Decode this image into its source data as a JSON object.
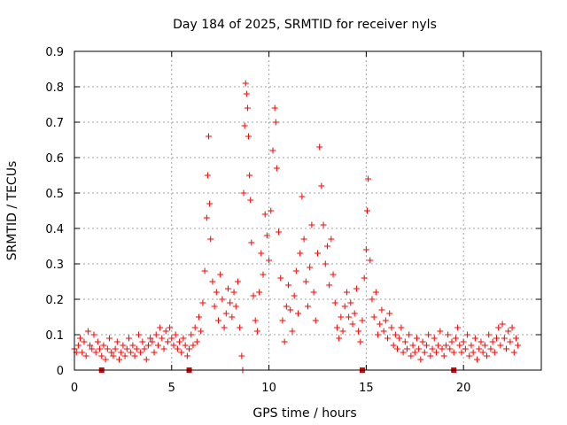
{
  "chart_data": {
    "type": "scatter",
    "title": "Day 184 of 2025, SRMTID for receiver nyls",
    "xlabel": "GPS time / hours",
    "ylabel": "SRMTID / TECUs",
    "xlim": [
      0,
      24
    ],
    "ylim": [
      0,
      0.9
    ],
    "xticks": [
      0,
      5,
      10,
      15,
      20
    ],
    "yticks": [
      0,
      0.1,
      0.2,
      0.3,
      0.4,
      0.5,
      0.6,
      0.7,
      0.8,
      0.9
    ],
    "xtick_labels": [
      "0",
      "5",
      "10",
      "15",
      "20"
    ],
    "ytick_labels": [
      "0",
      "0.1",
      "0.2",
      "0.3",
      "0.4",
      "0.5",
      "0.6",
      "0.7",
      "0.8",
      "0.9"
    ],
    "grid": true,
    "marker": "+",
    "color": "#ff0000",
    "gap_markers_x": [
      1.4,
      5.9,
      14.8,
      19.5
    ],
    "series": [
      {
        "name": "SRMTID",
        "points": [
          [
            0.0,
            0.06
          ],
          [
            0.1,
            0.05
          ],
          [
            0.2,
            0.07
          ],
          [
            0.3,
            0.09
          ],
          [
            0.4,
            0.05
          ],
          [
            0.5,
            0.08
          ],
          [
            0.6,
            0.04
          ],
          [
            0.7,
            0.11
          ],
          [
            0.8,
            0.07
          ],
          [
            0.9,
            0.06
          ],
          [
            1.0,
            0.1
          ],
          [
            1.1,
            0.05
          ],
          [
            1.2,
            0.08
          ],
          [
            1.3,
            0.06
          ],
          [
            1.4,
            0.04
          ],
          [
            1.5,
            0.07
          ],
          [
            1.6,
            0.03
          ],
          [
            1.7,
            0.06
          ],
          [
            1.8,
            0.09
          ],
          [
            1.9,
            0.05
          ],
          [
            2.0,
            0.04
          ],
          [
            2.1,
            0.06
          ],
          [
            2.2,
            0.08
          ],
          [
            2.3,
            0.03
          ],
          [
            2.4,
            0.05
          ],
          [
            2.5,
            0.07
          ],
          [
            2.6,
            0.04
          ],
          [
            2.7,
            0.06
          ],
          [
            2.8,
            0.09
          ],
          [
            2.9,
            0.05
          ],
          [
            3.0,
            0.07
          ],
          [
            3.1,
            0.04
          ],
          [
            3.2,
            0.06
          ],
          [
            3.3,
            0.1
          ],
          [
            3.4,
            0.05
          ],
          [
            3.5,
            0.08
          ],
          [
            3.6,
            0.06
          ],
          [
            3.7,
            0.03
          ],
          [
            3.8,
            0.07
          ],
          [
            3.9,
            0.09
          ],
          [
            4.0,
            0.08
          ],
          [
            4.1,
            0.05
          ],
          [
            4.2,
            0.1
          ],
          [
            4.3,
            0.07
          ],
          [
            4.4,
            0.12
          ],
          [
            4.5,
            0.09
          ],
          [
            4.6,
            0.06
          ],
          [
            4.7,
            0.11
          ],
          [
            4.8,
            0.08
          ],
          [
            4.9,
            0.12
          ],
          [
            5.0,
            0.09
          ],
          [
            5.1,
            0.07
          ],
          [
            5.2,
            0.1
          ],
          [
            5.3,
            0.06
          ],
          [
            5.4,
            0.08
          ],
          [
            5.5,
            0.05
          ],
          [
            5.6,
            0.09
          ],
          [
            5.7,
            0.07
          ],
          [
            5.8,
            0.04
          ],
          [
            5.9,
            0.06
          ],
          [
            6.0,
            0.1
          ],
          [
            6.1,
            0.07
          ],
          [
            6.2,
            0.12
          ],
          [
            6.3,
            0.08
          ],
          [
            6.4,
            0.15
          ],
          [
            6.5,
            0.11
          ],
          [
            6.6,
            0.19
          ],
          [
            6.7,
            0.28
          ],
          [
            6.8,
            0.43
          ],
          [
            6.85,
            0.55
          ],
          [
            6.9,
            0.66
          ],
          [
            6.95,
            0.47
          ],
          [
            7.0,
            0.37
          ],
          [
            7.1,
            0.25
          ],
          [
            7.2,
            0.18
          ],
          [
            7.3,
            0.22
          ],
          [
            7.4,
            0.14
          ],
          [
            7.5,
            0.27
          ],
          [
            7.6,
            0.2
          ],
          [
            7.7,
            0.12
          ],
          [
            7.8,
            0.16
          ],
          [
            7.9,
            0.23
          ],
          [
            8.0,
            0.19
          ],
          [
            8.1,
            0.15
          ],
          [
            8.2,
            0.22
          ],
          [
            8.3,
            0.18
          ],
          [
            8.4,
            0.25
          ],
          [
            8.5,
            0.12
          ],
          [
            8.6,
            0.04
          ],
          [
            8.65,
            0.0
          ],
          [
            8.7,
            0.5
          ],
          [
            8.75,
            0.69
          ],
          [
            8.8,
            0.81
          ],
          [
            8.85,
            0.78
          ],
          [
            8.9,
            0.74
          ],
          [
            8.95,
            0.66
          ],
          [
            9.0,
            0.55
          ],
          [
            9.05,
            0.48
          ],
          [
            9.1,
            0.36
          ],
          [
            9.2,
            0.21
          ],
          [
            9.3,
            0.14
          ],
          [
            9.4,
            0.11
          ],
          [
            9.5,
            0.22
          ],
          [
            9.6,
            0.33
          ],
          [
            9.7,
            0.27
          ],
          [
            9.8,
            0.44
          ],
          [
            9.9,
            0.38
          ],
          [
            10.0,
            0.31
          ],
          [
            10.1,
            0.45
          ],
          [
            10.2,
            0.62
          ],
          [
            10.3,
            0.74
          ],
          [
            10.35,
            0.7
          ],
          [
            10.4,
            0.57
          ],
          [
            10.5,
            0.39
          ],
          [
            10.6,
            0.26
          ],
          [
            10.7,
            0.14
          ],
          [
            10.8,
            0.08
          ],
          [
            10.9,
            0.18
          ],
          [
            11.0,
            0.24
          ],
          [
            11.1,
            0.17
          ],
          [
            11.2,
            0.11
          ],
          [
            11.3,
            0.21
          ],
          [
            11.4,
            0.28
          ],
          [
            11.5,
            0.16
          ],
          [
            11.6,
            0.33
          ],
          [
            11.7,
            0.49
          ],
          [
            11.8,
            0.37
          ],
          [
            11.9,
            0.25
          ],
          [
            12.0,
            0.18
          ],
          [
            12.1,
            0.29
          ],
          [
            12.2,
            0.41
          ],
          [
            12.3,
            0.22
          ],
          [
            12.4,
            0.14
          ],
          [
            12.5,
            0.33
          ],
          [
            12.6,
            0.63
          ],
          [
            12.7,
            0.52
          ],
          [
            12.8,
            0.41
          ],
          [
            12.9,
            0.3
          ],
          [
            13.0,
            0.35
          ],
          [
            13.1,
            0.24
          ],
          [
            13.2,
            0.37
          ],
          [
            13.3,
            0.27
          ],
          [
            13.4,
            0.19
          ],
          [
            13.5,
            0.12
          ],
          [
            13.6,
            0.09
          ],
          [
            13.7,
            0.15
          ],
          [
            13.8,
            0.11
          ],
          [
            13.9,
            0.18
          ],
          [
            14.0,
            0.22
          ],
          [
            14.1,
            0.15
          ],
          [
            14.2,
            0.19
          ],
          [
            14.3,
            0.13
          ],
          [
            14.4,
            0.16
          ],
          [
            14.5,
            0.23
          ],
          [
            14.6,
            0.11
          ],
          [
            14.7,
            0.08
          ],
          [
            14.8,
            0.14
          ],
          [
            14.9,
            0.26
          ],
          [
            15.0,
            0.34
          ],
          [
            15.05,
            0.45
          ],
          [
            15.1,
            0.54
          ],
          [
            15.2,
            0.31
          ],
          [
            15.3,
            0.2
          ],
          [
            15.4,
            0.15
          ],
          [
            15.5,
            0.22
          ],
          [
            15.6,
            0.1
          ],
          [
            15.7,
            0.13
          ],
          [
            15.8,
            0.17
          ],
          [
            15.9,
            0.11
          ],
          [
            16.0,
            0.14
          ],
          [
            16.1,
            0.09
          ],
          [
            16.2,
            0.16
          ],
          [
            16.3,
            0.12
          ],
          [
            16.4,
            0.07
          ],
          [
            16.5,
            0.1
          ],
          [
            16.6,
            0.06
          ],
          [
            16.7,
            0.09
          ],
          [
            16.8,
            0.12
          ],
          [
            16.9,
            0.05
          ],
          [
            17.0,
            0.08
          ],
          [
            17.1,
            0.06
          ],
          [
            17.2,
            0.1
          ],
          [
            17.3,
            0.04
          ],
          [
            17.4,
            0.07
          ],
          [
            17.5,
            0.05
          ],
          [
            17.6,
            0.09
          ],
          [
            17.7,
            0.06
          ],
          [
            17.8,
            0.03
          ],
          [
            17.9,
            0.08
          ],
          [
            18.0,
            0.05
          ],
          [
            18.1,
            0.07
          ],
          [
            18.2,
            0.1
          ],
          [
            18.3,
            0.04
          ],
          [
            18.4,
            0.06
          ],
          [
            18.5,
            0.09
          ],
          [
            18.6,
            0.05
          ],
          [
            18.7,
            0.07
          ],
          [
            18.8,
            0.11
          ],
          [
            18.9,
            0.06
          ],
          [
            19.0,
            0.04
          ],
          [
            19.1,
            0.07
          ],
          [
            19.2,
            0.1
          ],
          [
            19.3,
            0.06
          ],
          [
            19.4,
            0.08
          ],
          [
            19.5,
            0.05
          ],
          [
            19.6,
            0.09
          ],
          [
            19.7,
            0.12
          ],
          [
            19.8,
            0.07
          ],
          [
            19.9,
            0.05
          ],
          [
            20.0,
            0.08
          ],
          [
            20.1,
            0.06
          ],
          [
            20.2,
            0.1
          ],
          [
            20.3,
            0.04
          ],
          [
            20.4,
            0.07
          ],
          [
            20.5,
            0.05
          ],
          [
            20.6,
            0.09
          ],
          [
            20.7,
            0.03
          ],
          [
            20.8,
            0.06
          ],
          [
            20.9,
            0.08
          ],
          [
            21.0,
            0.05
          ],
          [
            21.1,
            0.07
          ],
          [
            21.2,
            0.04
          ],
          [
            21.3,
            0.1
          ],
          [
            21.4,
            0.06
          ],
          [
            21.5,
            0.08
          ],
          [
            21.6,
            0.05
          ],
          [
            21.7,
            0.09
          ],
          [
            21.8,
            0.12
          ],
          [
            21.9,
            0.07
          ],
          [
            22.0,
            0.13
          ],
          [
            22.1,
            0.09
          ],
          [
            22.2,
            0.06
          ],
          [
            22.3,
            0.11
          ],
          [
            22.4,
            0.08
          ],
          [
            22.5,
            0.12
          ],
          [
            22.6,
            0.05
          ],
          [
            22.7,
            0.09
          ],
          [
            22.8,
            0.07
          ]
        ]
      }
    ]
  }
}
